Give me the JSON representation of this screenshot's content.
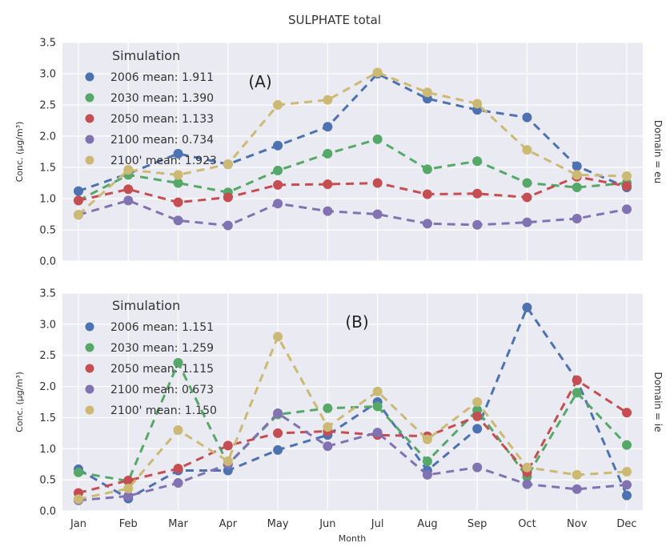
{
  "figure": {
    "title": "SULPHATE total",
    "xlabel": "Month",
    "ylabel": "Conc. (µg/m³)"
  },
  "chart_data": [
    {
      "type": "line",
      "panel_label": "(A)",
      "facet_label": "Domain = eu",
      "legend_title": "Simulation",
      "legend_placement": "top-left",
      "grid": true,
      "ylabel": "Conc. (µg/m³)",
      "xlabel": "",
      "ylim": [
        0,
        3.5
      ],
      "yticks": [
        "0.0",
        "0.5",
        "1.0",
        "1.5",
        "2.0",
        "2.5",
        "3.0",
        "3.5"
      ],
      "categories": [
        "Jan",
        "Feb",
        "Mar",
        "Apr",
        "May",
        "Jun",
        "Jul",
        "Aug",
        "Sep",
        "Oct",
        "Nov",
        "Dec"
      ],
      "series": [
        {
          "name": "2006 mean: 1.911",
          "color": "#4c72b0",
          "values": [
            1.12,
            1.4,
            1.72,
            1.55,
            1.85,
            2.15,
            3.0,
            2.6,
            2.42,
            2.3,
            1.52,
            1.18
          ]
        },
        {
          "name": "2030 mean: 1.390",
          "color": "#55a868",
          "values": [
            0.97,
            1.38,
            1.25,
            1.1,
            1.45,
            1.72,
            1.95,
            1.47,
            1.6,
            1.25,
            1.18,
            1.25
          ]
        },
        {
          "name": "2050 mean: 1.133",
          "color": "#c44e52",
          "values": [
            0.97,
            1.15,
            0.94,
            1.02,
            1.22,
            1.23,
            1.25,
            1.07,
            1.08,
            1.02,
            1.35,
            1.2
          ]
        },
        {
          "name": "2100 mean: 0.734",
          "color": "#8172b2",
          "values": [
            0.74,
            0.97,
            0.65,
            0.57,
            0.92,
            0.8,
            0.75,
            0.6,
            0.58,
            0.62,
            0.68,
            0.83
          ]
        },
        {
          "name": "2100' mean: 1.923",
          "color": "#ccb974",
          "values": [
            0.74,
            1.46,
            1.38,
            1.55,
            2.5,
            2.58,
            3.02,
            2.7,
            2.52,
            1.78,
            1.38,
            1.36
          ]
        }
      ]
    },
    {
      "type": "line",
      "panel_label": "(B)",
      "facet_label": "Domain = ie",
      "legend_title": "Simulation",
      "legend_placement": "top-left",
      "grid": true,
      "ylabel": "Conc. (µg/m³)",
      "xlabel": "Month",
      "ylim": [
        0,
        3.5
      ],
      "yticks": [
        "0.0",
        "0.5",
        "1.0",
        "1.5",
        "2.0",
        "2.5",
        "3.0",
        "3.5"
      ],
      "categories": [
        "Jan",
        "Feb",
        "Mar",
        "Apr",
        "May",
        "Jun",
        "Jul",
        "Aug",
        "Sep",
        "Oct",
        "Nov",
        "Dec"
      ],
      "series": [
        {
          "name": "2006 mean: 1.151",
          "color": "#4c72b0",
          "values": [
            0.67,
            0.2,
            0.65,
            0.65,
            0.98,
            1.22,
            1.75,
            0.65,
            1.32,
            3.27,
            2.1,
            0.25
          ]
        },
        {
          "name": "2030 mean: 1.259",
          "color": "#55a868",
          "values": [
            0.62,
            0.48,
            2.38,
            0.75,
            1.55,
            1.65,
            1.68,
            0.8,
            1.62,
            0.55,
            1.9,
            1.06
          ]
        },
        {
          "name": "2050 mean: 1.115",
          "color": "#c44e52",
          "values": [
            0.29,
            0.49,
            0.68,
            1.05,
            1.25,
            1.28,
            1.22,
            1.2,
            1.52,
            0.62,
            2.1,
            1.58
          ]
        },
        {
          "name": "2100 mean: 0.673",
          "color": "#8172b2",
          "values": [
            0.17,
            0.24,
            0.45,
            0.75,
            1.57,
            1.04,
            1.26,
            0.58,
            0.7,
            0.43,
            0.35,
            0.42
          ]
        },
        {
          "name": "2100' mean: 1.150",
          "color": "#ccb974",
          "values": [
            0.19,
            0.36,
            1.3,
            0.8,
            2.8,
            1.35,
            1.92,
            1.15,
            1.75,
            0.7,
            0.58,
            0.63
          ]
        }
      ]
    }
  ]
}
